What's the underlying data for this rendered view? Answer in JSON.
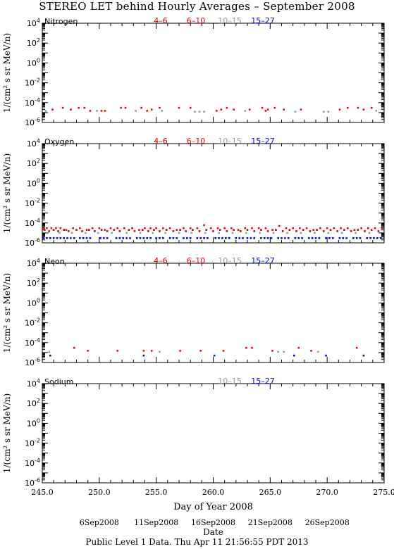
{
  "title": "STEREO LET behind Hourly Averages – September 2008",
  "footer": "Public Level 1 Data. Thu Apr 11 21:56:55 PDT 2013",
  "colors": {
    "4-6": "#cc0000",
    "6-10": "#ff0000",
    "10-15": "#999999",
    "15-27": "#0000ff"
  },
  "chart_data": [
    {
      "type": "scatter",
      "panel": "Nitrogen",
      "ylabel": "1/(cm² s sr MeV/n)",
      "yscale": "log",
      "ylim": [
        1e-06,
        10000.0
      ],
      "xlim": [
        245.0,
        275.0
      ],
      "ytick_labels": [
        "10^4",
        "10^2",
        "10^0",
        "10^-2",
        "10^-4",
        "10^-6"
      ],
      "legend": [
        "4–6",
        "6–10",
        "10–15",
        "15–27"
      ],
      "series": [
        {
          "name": "4–6",
          "color": "#cc0000",
          "x": [],
          "y": []
        },
        {
          "name": "6–10",
          "color": "#ff0000",
          "x": [
            245.9,
            246.8,
            247.5,
            248.2,
            248.7,
            249.2,
            250.2,
            250.5,
            251.9,
            252.3,
            253.7,
            254.2,
            254.6,
            255.3,
            257.0,
            258.0,
            260.3,
            260.7,
            261.2,
            261.8,
            263.2,
            264.3,
            264.6,
            264.8,
            265.4,
            266.2,
            267.7,
            271.1,
            271.8,
            272.7,
            273.2,
            273.9
          ],
          "y": [
            2e-05,
            3e-05,
            2e-05,
            3e-05,
            3e-05,
            1.5e-05,
            1.5e-05,
            1.5e-05,
            3e-05,
            3e-05,
            3e-05,
            1.5e-05,
            2e-05,
            3e-05,
            3e-05,
            3e-05,
            1.5e-05,
            2e-05,
            3e-05,
            2e-05,
            2e-05,
            3e-05,
            1.5e-05,
            2e-05,
            3e-05,
            2e-05,
            2e-05,
            2e-05,
            3e-05,
            3e-05,
            2e-05,
            3e-05
          ]
        },
        {
          "name": "10–15",
          "color": "#999999",
          "x": [
            245.3,
            249.8,
            253.2,
            255.5,
            258.4,
            258.8,
            259.2,
            262.8,
            267.2,
            269.7,
            270.1,
            274.3
          ],
          "y": [
            1.5e-05,
            1.5e-05,
            1.5e-05,
            1.5e-05,
            1.2e-05,
            1.2e-05,
            1.2e-05,
            1.5e-05,
            1.2e-05,
            1.2e-05,
            1.2e-05,
            1.5e-05
          ]
        },
        {
          "name": "15–27",
          "color": "#0000ff",
          "x": [],
          "y": []
        }
      ]
    },
    {
      "type": "scatter",
      "panel": "Oxygen",
      "ylabel": "1/(cm² s sr MeV/n)",
      "yscale": "log",
      "ylim": [
        1e-06,
        10000.0
      ],
      "xlim": [
        245.0,
        275.0
      ],
      "ytick_labels": [
        "10^4",
        "10^2",
        "10^0",
        "10^-2",
        "10^-4",
        "10^-6"
      ],
      "legend": [
        "4–6",
        "6–10",
        "10–15",
        "15–27"
      ],
      "series": [
        {
          "name": "4–6",
          "color": "#cc0000",
          "x": [
            245.2,
            245.6,
            246.0,
            246.4,
            246.9,
            247.3,
            248.0,
            248.5,
            249.1,
            249.6,
            250.2,
            250.7,
            251.3,
            251.8,
            252.6,
            253.1,
            253.8,
            254.3,
            254.8,
            255.3,
            255.9,
            256.5,
            257.1,
            257.6,
            258.2,
            258.8,
            259.4,
            260.0,
            260.6,
            261.2,
            261.8,
            262.4,
            263.0,
            263.6,
            264.2,
            264.8,
            265.5,
            266.1,
            266.7,
            267.3,
            267.9,
            268.5,
            269.1,
            269.7,
            270.3,
            270.9,
            271.5,
            272.1,
            272.7,
            273.3,
            273.9,
            274.5
          ],
          "y": [
            2e-05,
            1.5e-05,
            2e-05,
            1.5e-05,
            2e-05,
            1.5e-05,
            2e-05,
            1.5e-05,
            2e-05,
            1.5e-05,
            2e-05,
            1.5e-05,
            2e-05,
            1.5e-05,
            2e-05,
            1.5e-05,
            2e-05,
            1.5e-05,
            2e-05,
            1.5e-05,
            2e-05,
            1.5e-05,
            2e-05,
            1.5e-05,
            2e-05,
            1.5e-05,
            2e-05,
            1.5e-05,
            2e-05,
            1.5e-05,
            2e-05,
            1.5e-05,
            2e-05,
            1.5e-05,
            2e-05,
            1.5e-05,
            2e-05,
            1.5e-05,
            2e-05,
            1.5e-05,
            2e-05,
            1.5e-05,
            2e-05,
            1.5e-05,
            2e-05,
            1.5e-05,
            2e-05,
            1.5e-05,
            2e-05,
            1.5e-05,
            2e-05,
            1.5e-05
          ]
        },
        {
          "name": "6–10",
          "color": "#ff0000",
          "x": [
            245.1,
            245.4,
            245.8,
            246.2,
            246.6,
            247.1,
            247.7,
            248.3,
            248.9,
            249.4,
            250.0,
            250.5,
            251.0,
            251.6,
            252.2,
            252.9,
            253.5,
            254.0,
            254.5,
            255.0,
            255.6,
            256.2,
            256.8,
            257.4,
            258.0,
            258.6,
            259.2,
            259.8,
            260.4,
            261.0,
            261.6,
            262.2,
            262.8,
            263.4,
            264.0,
            264.6,
            265.2,
            265.8,
            266.4,
            267.0,
            267.6,
            268.2,
            268.8,
            269.4,
            270.0,
            270.6,
            271.2,
            271.8,
            272.4,
            273.0,
            273.6,
            274.2,
            274.8
          ],
          "y": [
            3e-05,
            3e-05,
            3e-05,
            3e-05,
            3e-05,
            2e-05,
            3e-05,
            3e-05,
            2e-05,
            3e-05,
            3e-05,
            2e-05,
            3e-05,
            3e-05,
            3e-05,
            3e-05,
            2e-05,
            3e-05,
            3e-05,
            3e-05,
            3e-05,
            3e-05,
            2e-05,
            3e-05,
            3e-05,
            3e-05,
            6e-05,
            3e-05,
            3e-05,
            3e-05,
            3e-05,
            2e-05,
            3e-05,
            3e-05,
            3e-05,
            3e-05,
            2e-05,
            5e-05,
            3e-05,
            3e-05,
            3e-05,
            3e-05,
            2e-05,
            3e-05,
            3e-05,
            3e-05,
            3e-05,
            3e-05,
            2e-05,
            3e-05,
            3e-05,
            3e-05,
            3e-05
          ]
        },
        {
          "name": "10–15",
          "color": "#999999",
          "x": [
            245.5,
            246.5,
            247.6,
            248.8,
            249.9,
            251.1,
            252.4,
            253.6,
            254.7,
            255.8,
            257.0,
            258.1,
            259.3,
            260.5,
            261.7,
            262.9,
            264.1,
            265.3,
            266.5,
            267.7,
            268.9,
            270.1,
            271.3,
            272.5,
            273.7
          ],
          "y": [
            1e-05,
            1e-05,
            1e-05,
            1e-05,
            1e-05,
            1e-05,
            1e-05,
            1e-05,
            1e-05,
            1e-05,
            1e-05,
            1e-05,
            1e-05,
            1e-05,
            1e-05,
            1e-05,
            1e-05,
            1e-05,
            1e-05,
            1e-05,
            1e-05,
            1e-05,
            1e-05,
            1e-05,
            1e-05
          ]
        },
        {
          "name": "15–27",
          "color": "#0000ff",
          "x": [
            245.1,
            245.4,
            245.7,
            246.0,
            246.3,
            246.6,
            246.9,
            247.2,
            247.5,
            247.8,
            248.3,
            248.6,
            248.9,
            249.2,
            250.1,
            250.4,
            250.7,
            251.5,
            251.8,
            252.1,
            252.4,
            252.7,
            253.3,
            253.6,
            253.9,
            254.2,
            254.5,
            255.0,
            255.3,
            255.6,
            256.2,
            256.5,
            256.8,
            257.4,
            257.7,
            258.0,
            258.6,
            258.9,
            259.2,
            259.5,
            260.2,
            260.5,
            260.8,
            261.1,
            261.4,
            262.0,
            262.3,
            262.6,
            263.0,
            263.3,
            263.6,
            264.2,
            264.5,
            264.8,
            265.1,
            265.7,
            266.0,
            266.3,
            266.6,
            267.2,
            267.5,
            267.8,
            268.4,
            268.7,
            269.0,
            269.3,
            269.9,
            270.2,
            270.5,
            271.1,
            271.4,
            271.7,
            272.3,
            272.6,
            272.9,
            273.5,
            273.8,
            274.1,
            274.4,
            274.7
          ],
          "y": [
            3e-06,
            3e-06,
            3e-06,
            3e-06,
            3e-06,
            3e-06,
            3e-06,
            3e-06,
            3e-06,
            3e-06,
            3e-06,
            3e-06,
            3e-06,
            3e-06,
            3e-06,
            3e-06,
            3e-06,
            3e-06,
            3e-06,
            3e-06,
            3e-06,
            3e-06,
            3e-06,
            3e-06,
            3e-06,
            3e-06,
            3e-06,
            3e-06,
            3e-06,
            3e-06,
            3e-06,
            3e-06,
            3e-06,
            3e-06,
            3e-06,
            3e-06,
            3e-06,
            3e-06,
            3e-06,
            3e-06,
            3e-06,
            3e-06,
            3e-06,
            3e-06,
            3e-06,
            3e-06,
            3e-06,
            3e-06,
            3e-06,
            3e-06,
            3e-06,
            3e-06,
            3e-06,
            3e-06,
            3e-06,
            3e-06,
            3e-06,
            3e-06,
            3e-06,
            3e-06,
            3e-06,
            3e-06,
            3e-06,
            3e-06,
            3e-06,
            3e-06,
            3e-06,
            3e-06,
            3e-06,
            3e-06,
            3e-06,
            3e-06,
            3e-06,
            3e-06,
            3e-06,
            3e-06,
            3e-06,
            3e-06,
            3e-06,
            3e-06
          ]
        }
      ]
    },
    {
      "type": "scatter",
      "panel": "Neon",
      "ylabel": "1/(cm² s sr MeV/n)",
      "yscale": "log",
      "ylim": [
        1e-06,
        10000.0
      ],
      "xlim": [
        245.0,
        275.0
      ],
      "ytick_labels": [
        "10^4",
        "10^2",
        "10^0",
        "10^-2",
        "10^-4",
        "10^-6"
      ],
      "legend": [
        "4–6",
        "6–10",
        "10–15",
        "15–27"
      ],
      "series": [
        {
          "name": "4–6",
          "color": "#cc0000",
          "x": [],
          "y": []
        },
        {
          "name": "6–10",
          "color": "#ff0000",
          "x": [
            247.8,
            249.0,
            251.6,
            253.9,
            254.6,
            257.1,
            258.9,
            260.9,
            262.9,
            263.4,
            265.2,
            267.5,
            268.6,
            272.6
          ],
          "y": [
            3e-05,
            1.5e-05,
            1.5e-05,
            1.5e-05,
            1.5e-05,
            1.5e-05,
            1.5e-05,
            1.5e-05,
            3e-05,
            3e-05,
            1.5e-05,
            3e-05,
            1.5e-05,
            3e-05
          ]
        },
        {
          "name": "10–15",
          "color": "#999999",
          "x": [
            245.6,
            255.3,
            265.7,
            266.2,
            269.2
          ],
          "y": [
            1.2e-05,
            1.2e-05,
            1.2e-05,
            1.2e-05,
            1.2e-05
          ]
        },
        {
          "name": "15–27",
          "color": "#0000ff",
          "x": [
            245.7,
            253.9,
            260.1,
            267.1,
            269.9,
            273.2
          ],
          "y": [
            5e-06,
            5e-06,
            5e-06,
            5e-06,
            5e-06,
            5e-06
          ]
        }
      ]
    },
    {
      "type": "scatter",
      "panel": "Sodium",
      "ylabel": "1/(cm² s sr MeV/n)",
      "yscale": "log",
      "ylim": [
        1e-06,
        10000.0
      ],
      "xlim": [
        245.0,
        275.0
      ],
      "ytick_labels": [
        "10^4",
        "10^2",
        "10^0",
        "10^-2",
        "10^-4",
        "10^-6"
      ],
      "legend": [
        "10–15",
        "15–27"
      ],
      "series": [
        {
          "name": "10–15",
          "color": "#999999",
          "x": [],
          "y": []
        },
        {
          "name": "15–27",
          "color": "#0000ff",
          "x": [],
          "y": []
        }
      ]
    }
  ],
  "x_axis": {
    "label": "Day of Year 2008",
    "tick_labels": [
      "245.0",
      "250.0",
      "255.0",
      "260.0",
      "265.0",
      "270.0",
      "275.0"
    ],
    "date_label": "Date",
    "date_ticks": [
      {
        "day": 250.0,
        "label": "6Sep2008"
      },
      {
        "day": 255.0,
        "label": "11Sep2008"
      },
      {
        "day": 260.0,
        "label": "16Sep2008"
      },
      {
        "day": 265.0,
        "label": "21Sep2008"
      },
      {
        "day": 270.0,
        "label": "26Sep2008"
      }
    ]
  }
}
